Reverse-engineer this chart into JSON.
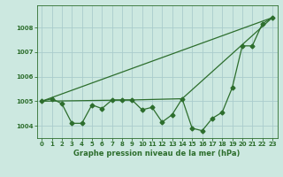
{
  "title": "Graphe pression niveau de la mer (hPa)",
  "background_color": "#cce8e0",
  "grid_color": "#aacccc",
  "line_color": "#2d6e2d",
  "xlim": [
    -0.5,
    23.5
  ],
  "ylim": [
    1003.5,
    1008.9
  ],
  "yticks": [
    1004,
    1005,
    1006,
    1007,
    1008
  ],
  "xticks": [
    0,
    1,
    2,
    3,
    4,
    5,
    6,
    7,
    8,
    9,
    10,
    11,
    12,
    13,
    14,
    15,
    16,
    17,
    18,
    19,
    20,
    21,
    22,
    23
  ],
  "line1_x": [
    0,
    1,
    2,
    3,
    4,
    5,
    6,
    7,
    8,
    9,
    10,
    11,
    12,
    13,
    14,
    15,
    16,
    17,
    18,
    19,
    20,
    21,
    22,
    23
  ],
  "line1_y": [
    1005.0,
    1005.1,
    1004.9,
    1004.1,
    1004.1,
    1004.85,
    1004.7,
    1005.05,
    1005.05,
    1005.05,
    1004.65,
    1004.75,
    1004.15,
    1004.45,
    1005.1,
    1003.9,
    1003.8,
    1004.3,
    1004.55,
    1005.55,
    1007.25,
    1007.25,
    1008.15,
    1008.4
  ],
  "line2_x": [
    0,
    23
  ],
  "line2_y": [
    1005.0,
    1008.4
  ],
  "line3_x": [
    0,
    9,
    14,
    23
  ],
  "line3_y": [
    1005.0,
    1005.05,
    1005.1,
    1008.4
  ],
  "marker_size": 2.5,
  "linewidth": 0.9,
  "xlabel_fontsize": 6.0,
  "tick_fontsize": 5.0
}
